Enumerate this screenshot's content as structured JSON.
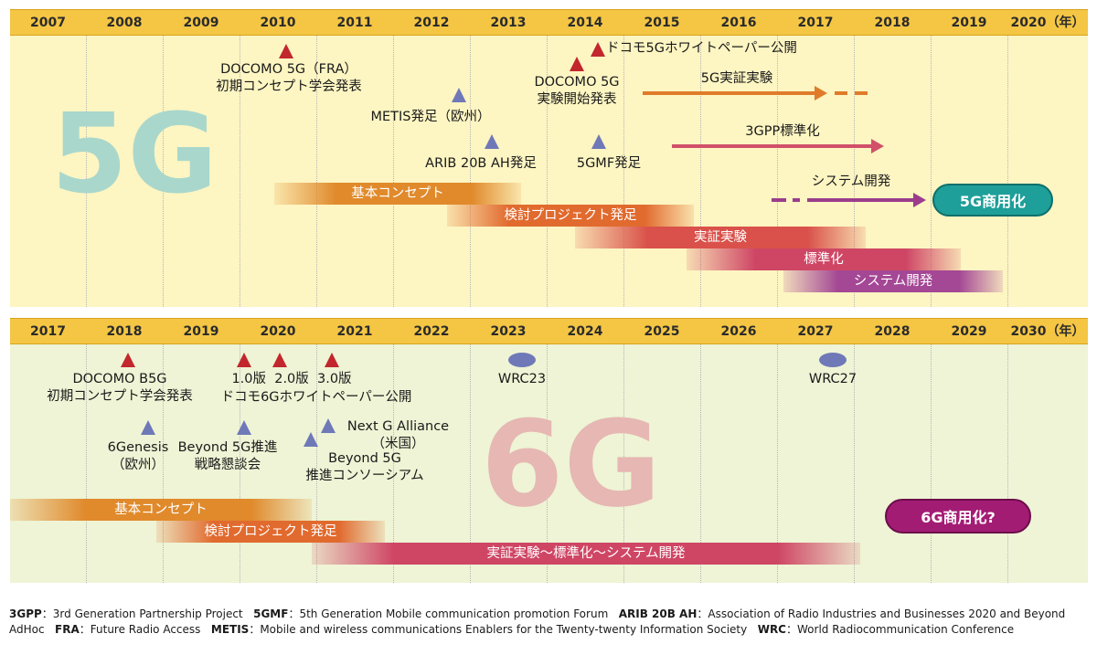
{
  "panel5g": {
    "years": [
      "2007",
      "2008",
      "2009",
      "2010",
      "2011",
      "2012",
      "2013",
      "2014",
      "2015",
      "2016",
      "2017",
      "2018",
      "2019",
      "2020（年）"
    ],
    "big_label": "5G",
    "milestones": {
      "docomo_fra_l1": "DOCOMO 5G（FRA）",
      "docomo_fra_l2": "初期コンセプト学会発表",
      "metis": "METIS発足（欧州）",
      "arib": "ARIB 20B AH発足",
      "whitepaper": "ドコモ5Gホワイトペーパー公開",
      "docomo_exp_l1": "DOCOMO 5G",
      "docomo_exp_l2": "実験開始発表",
      "fivegmf": "5GMF発足"
    },
    "arrows": {
      "trial": "5G実証実験",
      "standardization": "3GPP標準化",
      "system": "システム開発"
    },
    "phases": [
      "基本コンセプト",
      "検討プロジェクト発足",
      "実証実験",
      "標準化",
      "システム開発"
    ],
    "commercial": "5G商用化"
  },
  "panel6g": {
    "years": [
      "2017",
      "2018",
      "2019",
      "2020",
      "2021",
      "2022",
      "2023",
      "2024",
      "2025",
      "2026",
      "2027",
      "2028",
      "2029",
      "2030（年）"
    ],
    "big_label": "6G",
    "milestones": {
      "docomo_b5g_l1": "DOCOMO B5G",
      "docomo_b5g_l2": "初期コンセプト学会発表",
      "wp_versions": "1.0版  2.0版  3.0版",
      "wp": "ドコモ6Gホワイトペーパー公開",
      "wrc23": "WRC23",
      "wrc27": "WRC27",
      "sixgenesis_l1": "6Genesis",
      "sixgenesis_l2": "（欧州）",
      "beyond_council_l1": "Beyond 5G推進",
      "beyond_council_l2": "戦略懇談会",
      "nextg_l1": "Next G Alliance",
      "nextg_l2": "（米国）",
      "beyond_consortium_l1": "Beyond 5G",
      "beyond_consortium_l2": "推進コンソーシアム"
    },
    "phases": [
      "基本コンセプト",
      "検討プロジェクト発足",
      "実証実験〜標準化〜システム開発"
    ],
    "commercial": "6G商用化?"
  },
  "footnote": {
    "items": [
      {
        "abbr": "3GPP",
        "text": "：3rd Generation Partnership Project"
      },
      {
        "abbr": "5GMF",
        "text": "：5th Generation Mobile communication promotion Forum"
      },
      {
        "abbr": "ARIB 20B AH",
        "text": "：Association of Radio Industries and Businesses 2020 and Beyond AdHoc"
      },
      {
        "abbr": "FRA",
        "text": "：Future Radio Access"
      },
      {
        "abbr": "METIS",
        "text": "：Mobile and wireless communications Enablers for the Twenty-twenty Information Society"
      },
      {
        "abbr": "WRC",
        "text": "：World Radiocommunication Conference"
      }
    ]
  },
  "colors": {
    "axis": "#f4c644",
    "panel5g_bg": "#fdf5c2",
    "panel6g_bg": "#eef4d5",
    "marker_red": "#c1272d",
    "marker_blue": "#6f79b8",
    "big5g": "#a9d7cc",
    "big6g": "#e6b7b3",
    "commercial5g": "#1e9f99",
    "commercial6g": "#a31c74"
  }
}
